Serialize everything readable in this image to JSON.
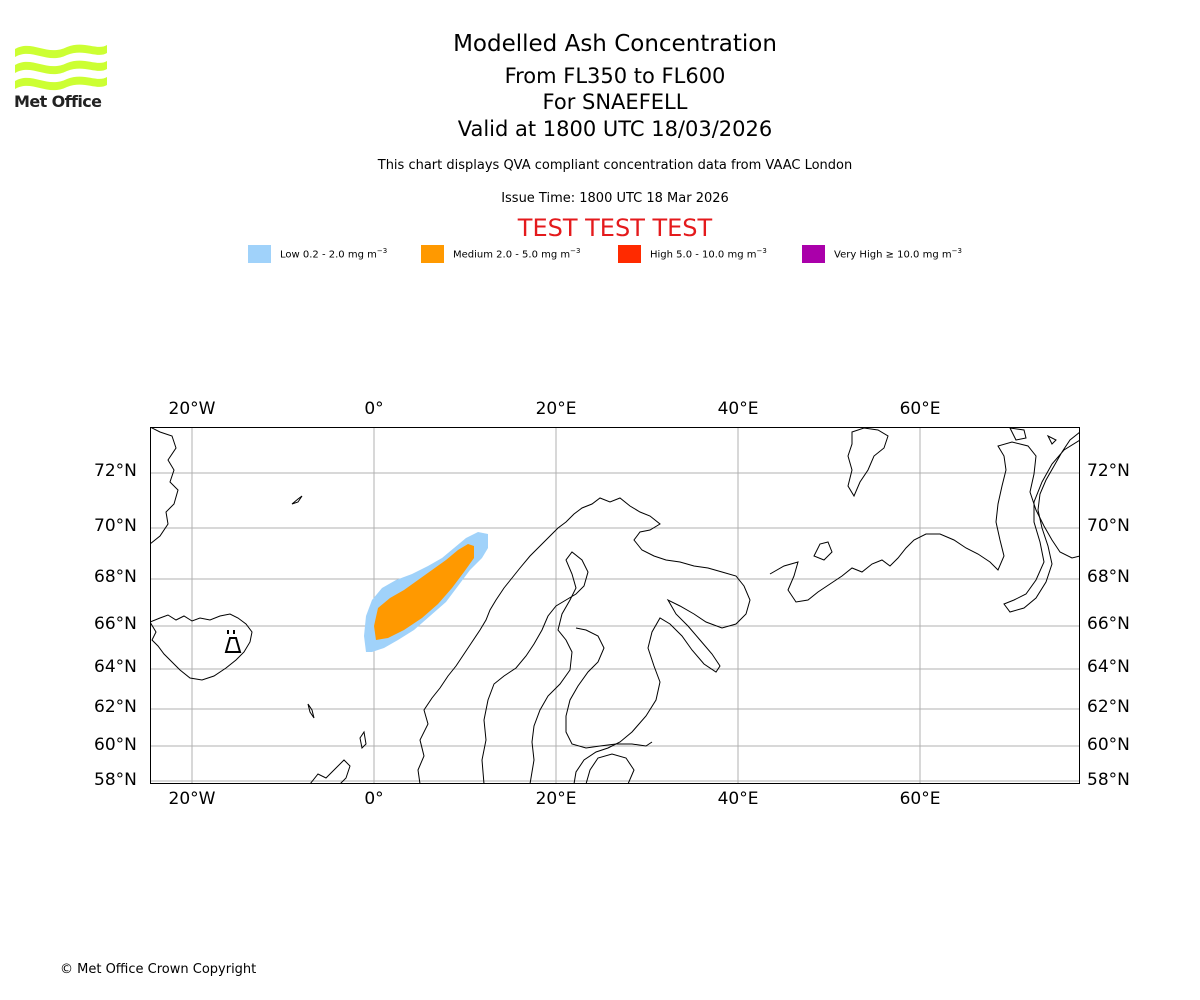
{
  "brand": {
    "name": "Met Office",
    "logo_color": "#ccff33"
  },
  "titles": {
    "main": "Modelled Ash Concentration",
    "levels": "From FL350 to FL600",
    "volcano": "For SNAEFELL",
    "valid": "Valid at 1800 UTC 18/03/2026"
  },
  "caption": "This chart displays QVA compliant concentration data from VAAC London",
  "issue_time": "Issue Time: 1800 UTC 18 Mar 2026",
  "test_banner": "TEST TEST TEST",
  "legend": [
    {
      "label": "Low 0.2 - 2.0 mg m",
      "color": "#a0d2fa"
    },
    {
      "label": "Medium 2.0 - 5.0 mg m",
      "color": "#ff9900"
    },
    {
      "label": "High 5.0 - 10.0 mg m",
      "color": "#ff2a00"
    },
    {
      "label": "Very High ≥ 10.0 mg m",
      "color": "#aa00aa"
    }
  ],
  "legend_unit_exp": "−3",
  "map": {
    "lon_labels": [
      "20°W",
      "0°",
      "20°E",
      "40°E",
      "60°E"
    ],
    "lat_labels": [
      "72°N",
      "70°N",
      "68°N",
      "66°N",
      "64°N",
      "62°N",
      "60°N",
      "58°N"
    ]
  },
  "footer": "© Met Office Crown Copyright"
}
